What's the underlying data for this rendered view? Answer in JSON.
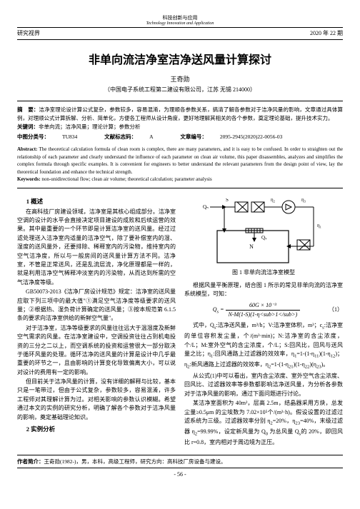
{
  "top_header": "科技创新与应用",
  "top_header_en": "Technology Innovation and Application",
  "sub_left": "研究视界",
  "sub_right": "2020 年 22 期",
  "title": "非单向流洁净室洁净送风量计算探讨",
  "author": "王奇勋",
  "affiliation": "（中国电子系统工程第二建设有限公司，江苏 无锡 214000）",
  "abstract_cn_label": "摘　要：",
  "abstract_cn": "洁净室理论设计算公式复杂，参数较多，容易混淆，为理顺各参数关系，搞清了解各参数对于洁净风量的影响，文章通过具体算例，对理顺公式计算拆解、分析、简单化，方便各工程师从设计角度，更好地理解其相关的各个参数，奠定理论基础，提升技术实力。",
  "keywords_cn_label": "关键词：",
  "keywords_cn": "非单向流；洁净风量；理论计算；参数分析",
  "class_label": "中图分类号：",
  "class_val": "TU834",
  "doc_code_label": "文献标志码：",
  "doc_code_val": "A",
  "article_no_label": "文章编号：",
  "article_no_val": "2095-2945(2020)22-0056-03",
  "abstract_en_label": "Abstract:",
  "abstract_en": "The theoretical calculation formula of clean room is complex, there are many parameters, and it is easy to be confused. In order to straighten out the relationship of each parameter and clearly understand the influence of each parameter on clean air volume, this paper disassembles, analyzes and simplifies the complex formula through specific examples. It is convenient for engineers to better understand the relevant parameters from the design point of view, lay the theoretical foundation and enhance the technical strength.",
  "keywords_en_label": "Keywords:",
  "keywords_en": "non-unidirectional flow; clean air volume; theoretical calculation; parameter analysis",
  "sec1": "1 概述",
  "p1": "在高科技厂房建设领域，洁净室是其核心组成部分。洁净室空调的设计的水平会直接决定项目建设的成败和后续运营的效果。其中最重要的一个环节即是计算洁净室的送风量。经过过滤处理送入洁净室内适量的洁净空气，除了要补偿室内的湿、湿度的送风量外，还要排除、稀释室内的污染物，维持室内的空气洁净度，所以与一般房间的送风量计算方法不同。洁净室，不管是正常送风，还是乱流层流，净化原理都是一样的，就是利用洁净空气稀释冲淡室内的污染物，从而达到所需的空气洁净度等级。",
  "p2": "GB50073-2013《洁净厂房设计规范》规定：洁净室的送风量应取下列三项中的最大值\"①满足空气洁净度等级要求的送风量；②根据热、湿负荷计算确定的送风量；③按本规范第 6.1.5 条的要求向洁净室供给的新鲜空气量\"。",
  "p3": "对于洁净室，洁净等级要求的风量往往远大于温湿度及新鲜空气需求的风量。在洁净室建设中，空调投资往往占到机电投资的三分之二以上，而空调系统的投资和运营很大一部分取决于循环风量的处理。循环洁净的送风量的计算是设计中几乎最重要的环节之一，且由影响的计算变化导致偏离大小，可以说对设计的费用有一定的影响。",
  "p4": "但目前关于洁净风量的计算，没有详细的解释与比较，基本只是一笔带过，但由于公式复杂，参数较多，容易混淆，许多工程师对其理解计算为过。对相关影响的参数认识模糊。希望通过本文的实例的研究分析，明确了解各个参数对于洁净风量的影响，奠定基础理论知识。",
  "sec2": "2 实例分析",
  "fig1_caption": "图 1 非单向流洁净室模型",
  "p5": "根据风量平衡原理，结合图 1 所示的常见非单向流的洁净室系统模型，可知：",
  "formula1": "Q<sub>s</sub> = ———————",
  "formula1_frac": "60G × 10⁻³",
  "formula1_denom": "N-M(1-S)(1-η<sub>1</sub>)",
  "formula1_num": "（1）",
  "p6": "式中，Q<sub>s</sub>:洁净送风量，m³/h；V:洁净室体积，m³；c<sub>s</sub>:洁净室的单位容积发尘量，个/(m³·min)；N:洁净室的含尘浓度，个/L；M:室外空气的含尘浓度，个/L；S:回风比，回风与送风量之比；η<sub>1</sub>:回风通路上过滤器的效效率，η<sub>1</sub>=1-(1-η<sub>11</sub>)(1-η<sub>12</sub>)；η<sub>2</sub>:新风通路上过滤器的效效率，η<sub>2</sub>=1-(1-η<sub>21</sub>)(1-η<sub>22</sub>)(η<sub>23</sub>)。",
  "p7": "从公式(1)中可以看出，室内含尘浓度、室外空气含尘浓度、回风比、过滤器效率等参数都影响洁净送风量，为分析各参数对于洁净风量的影响，通过下面问题进行讨论。",
  "p8": "某洁净室面积为 40m²，层高 2.5m，结晶器采用方炔，总发尘量≥0.5μm 的尘埃数为 7.02×10⁵个/(m³·h)。假设设置的过滤过滤系统为三级。过滤器效率分别 η<sub>2</sub>=20%，η<sub>23</sub>=40%，末级过滤器 η<sub>2</sub>=99.99%，设定新风量为 Q<sub>0</sub> 为总风量 Q<sub>s</sub>的 20%，即回风比 r=0.8，室内相对于周边境为正压。",
  "footer_label": "作者简介：",
  "footer_text": "王奇勋(1982-)，男，本科，高级工程师，研究方向：高科技厂房设备与建设。",
  "page_num": "- 56 -",
  "diagram": {
    "labels": {
      "s": "S",
      "n": "N",
      "e1": "η₁",
      "e2": "η₂",
      "e3": "η₃",
      "qn": "Qₙ",
      "qs": "Qₛ"
    },
    "colors": {
      "stroke": "#000000",
      "fill": "#ffffff"
    }
  }
}
